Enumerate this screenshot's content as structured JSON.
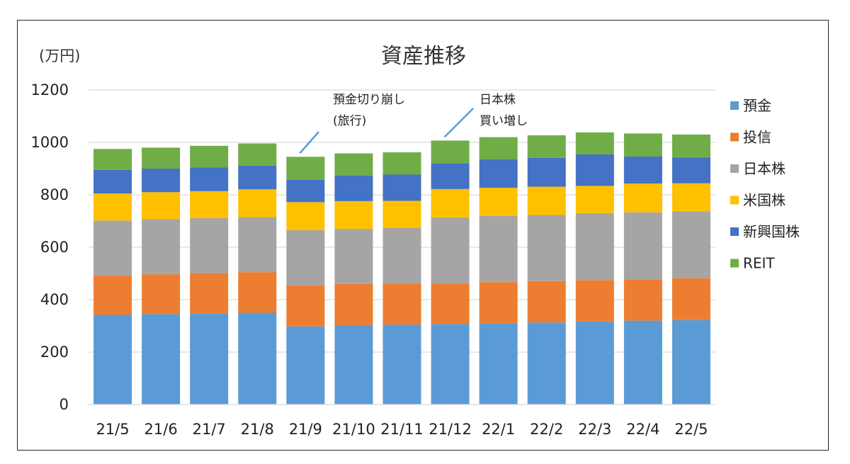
{
  "chart_data": {
    "type": "bar",
    "stacked": true,
    "title": "資産推移",
    "ylabel": "(万円)",
    "xlabel": "",
    "ylim": [
      0,
      1200
    ],
    "yticks": [
      0,
      200,
      400,
      600,
      800,
      1000,
      1200
    ],
    "grid": true,
    "legend_position": "right",
    "categories": [
      "21/5",
      "21/6",
      "21/7",
      "21/8",
      "21/9",
      "21/10",
      "21/11",
      "21/12",
      "22/1",
      "22/2",
      "22/3",
      "22/4",
      "22/5"
    ],
    "series": [
      {
        "name": "預金",
        "color": "#5B9BD5",
        "values": [
          342,
          345,
          348,
          350,
          298,
          303,
          305,
          307,
          310,
          313,
          317,
          320,
          322
        ]
      },
      {
        "name": "投信",
        "color": "#ED7D31",
        "values": [
          150,
          152,
          153,
          155,
          157,
          157,
          156,
          155,
          157,
          158,
          158,
          158,
          160
        ]
      },
      {
        "name": "日本株",
        "color": "#A5A5A5",
        "values": [
          210,
          210,
          210,
          210,
          210,
          210,
          212,
          252,
          252,
          252,
          255,
          255,
          255
        ]
      },
      {
        "name": "米国株",
        "color": "#FFC000",
        "values": [
          103,
          103,
          103,
          106,
          107,
          106,
          104,
          108,
          108,
          108,
          104,
          110,
          107
        ]
      },
      {
        "name": "新興国株",
        "color": "#4472C4",
        "values": [
          90,
          90,
          90,
          90,
          85,
          97,
          100,
          98,
          108,
          110,
          120,
          103,
          98
        ]
      },
      {
        "name": "REIT",
        "color": "#70AD47",
        "values": [
          80,
          80,
          83,
          85,
          88,
          85,
          85,
          87,
          85,
          86,
          84,
          88,
          88
        ]
      }
    ],
    "annotations": [
      {
        "lines": [
          "預金切り崩し",
          "(旅行)"
        ],
        "category": "21/9"
      },
      {
        "lines": [
          "日本株",
          "買い増し"
        ],
        "category": "21/12"
      }
    ]
  }
}
